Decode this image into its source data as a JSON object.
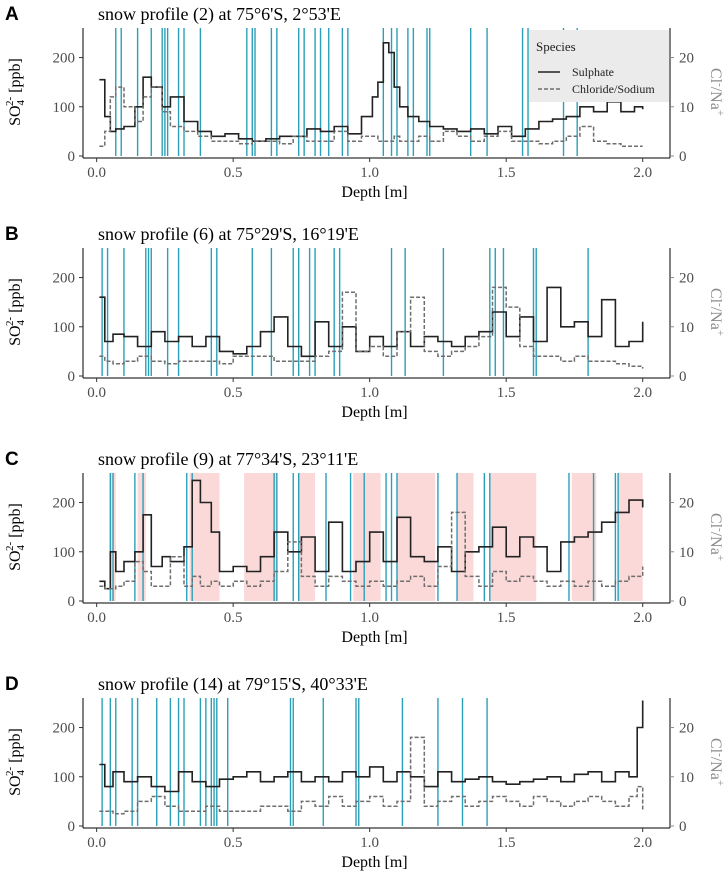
{
  "chart_data": [
    {
      "type": "line",
      "panel": "A",
      "title": "snow profile (2) at 75°6'S, 2°53'E",
      "xlabel": "Depth [m]",
      "ylabel": "SO4 2- [ppb]",
      "ylabel_right": "Cl-/Na+",
      "xlim": [
        -0.05,
        2.1
      ],
      "ylim": [
        0,
        260
      ],
      "ylim_right": [
        0,
        26
      ],
      "x_ticks": [
        "0.0",
        "0.5",
        "1.0",
        "1.5",
        "2.0"
      ],
      "y_ticks": [
        "0",
        "100",
        "200"
      ],
      "y_ticks_right": [
        "0",
        "10",
        "20"
      ],
      "legend": {
        "title": "Species",
        "entries": [
          "Sulphate",
          "Chloride/Sodium"
        ]
      },
      "vlines": [
        0.07,
        0.09,
        0.15,
        0.2,
        0.24,
        0.25,
        0.26,
        0.3,
        0.32,
        0.38,
        0.55,
        0.57,
        0.58,
        0.64,
        0.66,
        0.74,
        0.76,
        0.8,
        0.82,
        0.85,
        0.9,
        0.92,
        1.05,
        1.08,
        1.1,
        1.14,
        1.16,
        1.21,
        1.22,
        1.37,
        1.43,
        1.56,
        1.58,
        1.71,
        1.76
      ],
      "vline_color": "#2aa0b8",
      "bands": [],
      "series": [
        {
          "name": "Sulphate",
          "style": "solid",
          "x": [
            0.01,
            0.03,
            0.05,
            0.07,
            0.1,
            0.14,
            0.17,
            0.2,
            0.24,
            0.27,
            0.32,
            0.37,
            0.42,
            0.47,
            0.52,
            0.57,
            0.62,
            0.67,
            0.72,
            0.77,
            0.82,
            0.87,
            0.92,
            0.97,
            1.01,
            1.03,
            1.05,
            1.07,
            1.09,
            1.11,
            1.14,
            1.18,
            1.22,
            1.27,
            1.32,
            1.37,
            1.42,
            1.47,
            1.52,
            1.57,
            1.62,
            1.67,
            1.72,
            1.77,
            1.82,
            1.87,
            1.92,
            1.97,
            2.0
          ],
          "y": [
            155,
            80,
            50,
            55,
            60,
            100,
            160,
            140,
            100,
            120,
            70,
            50,
            40,
            45,
            35,
            30,
            35,
            40,
            40,
            55,
            50,
            60,
            45,
            80,
            120,
            150,
            230,
            210,
            140,
            100,
            80,
            70,
            60,
            55,
            50,
            55,
            45,
            60,
            40,
            55,
            70,
            75,
            80,
            100,
            90,
            110,
            90,
            100,
            95
          ]
        },
        {
          "name": "Chloride/Sodium",
          "style": "dashed",
          "x": [
            0.01,
            0.03,
            0.05,
            0.07,
            0.1,
            0.14,
            0.17,
            0.2,
            0.24,
            0.27,
            0.32,
            0.37,
            0.42,
            0.47,
            0.52,
            0.57,
            0.62,
            0.67,
            0.72,
            0.77,
            0.82,
            0.87,
            0.92,
            0.97,
            1.01,
            1.03,
            1.05,
            1.07,
            1.09,
            1.11,
            1.14,
            1.18,
            1.22,
            1.27,
            1.32,
            1.37,
            1.42,
            1.47,
            1.52,
            1.57,
            1.62,
            1.67,
            1.72,
            1.77,
            1.82,
            1.87,
            1.92,
            1.97,
            2.0
          ],
          "y": [
            2,
            5,
            12,
            14,
            10,
            7,
            12,
            14,
            9,
            6,
            5,
            4,
            3,
            3,
            2.5,
            3,
            3,
            2.5,
            4,
            3,
            3,
            5,
            3,
            4,
            4,
            3,
            3,
            3,
            4,
            3,
            3,
            4,
            3,
            5,
            4,
            3,
            4,
            5,
            3,
            3,
            2.5,
            3,
            4,
            6,
            3,
            2.5,
            2,
            2,
            2
          ]
        }
      ]
    },
    {
      "type": "line",
      "panel": "B",
      "title": "snow profile (6) at 75°29'S, 16°19'E",
      "xlabel": "Depth [m]",
      "ylabel": "SO4 2- [ppb]",
      "ylabel_right": "Cl-/Na+",
      "xlim": [
        -0.05,
        2.1
      ],
      "ylim": [
        0,
        260
      ],
      "ylim_right": [
        0,
        26
      ],
      "x_ticks": [
        "0.0",
        "0.5",
        "1.0",
        "1.5",
        "2.0"
      ],
      "y_ticks": [
        "0",
        "100",
        "200"
      ],
      "y_ticks_right": [
        "0",
        "10",
        "20"
      ],
      "vlines": [
        0.02,
        0.04,
        0.1,
        0.18,
        0.19,
        0.2,
        0.26,
        0.3,
        0.42,
        0.44,
        0.57,
        0.64,
        0.72,
        0.74,
        0.78,
        0.8,
        0.87,
        0.89,
        1.08,
        1.13,
        1.27,
        1.44,
        1.46,
        1.49,
        1.6,
        1.61,
        1.8
      ],
      "vline_color": "#2aa0b8",
      "bands": [],
      "series": [
        {
          "name": "Sulphate",
          "style": "solid",
          "x": [
            0.01,
            0.03,
            0.06,
            0.1,
            0.15,
            0.2,
            0.25,
            0.3,
            0.35,
            0.4,
            0.45,
            0.5,
            0.55,
            0.6,
            0.65,
            0.7,
            0.75,
            0.8,
            0.85,
            0.9,
            0.95,
            1.0,
            1.05,
            1.1,
            1.15,
            1.2,
            1.25,
            1.3,
            1.35,
            1.4,
            1.45,
            1.5,
            1.55,
            1.6,
            1.65,
            1.7,
            1.75,
            1.8,
            1.85,
            1.9,
            1.95,
            2.0
          ],
          "y": [
            160,
            70,
            85,
            80,
            60,
            90,
            70,
            80,
            60,
            80,
            50,
            45,
            60,
            90,
            120,
            60,
            40,
            110,
            60,
            100,
            50,
            80,
            60,
            90,
            60,
            80,
            70,
            60,
            80,
            90,
            130,
            80,
            120,
            70,
            180,
            100,
            110,
            80,
            155,
            60,
            70,
            110
          ]
        },
        {
          "name": "Chloride/Sodium",
          "style": "dashed",
          "x": [
            0.01,
            0.03,
            0.06,
            0.1,
            0.15,
            0.2,
            0.25,
            0.3,
            0.35,
            0.4,
            0.45,
            0.5,
            0.55,
            0.6,
            0.65,
            0.7,
            0.75,
            0.8,
            0.85,
            0.9,
            0.95,
            1.0,
            1.05,
            1.1,
            1.15,
            1.2,
            1.25,
            1.3,
            1.35,
            1.4,
            1.45,
            1.5,
            1.55,
            1.6,
            1.65,
            1.7,
            1.75,
            1.8,
            1.85,
            1.9,
            1.95,
            2.0
          ],
          "y": [
            4,
            3,
            2.5,
            3,
            4,
            3,
            2.5,
            3,
            3,
            3,
            2.5,
            4,
            4,
            4,
            3,
            3,
            3,
            4,
            5,
            17,
            5,
            6,
            4,
            9,
            16,
            5,
            4,
            5,
            6,
            8,
            18,
            14,
            6,
            4,
            4,
            3,
            4,
            3,
            3,
            2.5,
            2,
            1.5
          ]
        }
      ]
    },
    {
      "type": "line",
      "panel": "C",
      "title": "snow profile (9) at 77°34'S, 23°11'E",
      "xlabel": "Depth [m]",
      "ylabel": "SO4 2- [ppb]",
      "ylabel_right": "Cl-/Na+",
      "xlim": [
        -0.05,
        2.1
      ],
      "ylim": [
        0,
        260
      ],
      "ylim_right": [
        0,
        26
      ],
      "x_ticks": [
        "0.0",
        "0.5",
        "1.0",
        "1.5",
        "2.0"
      ],
      "y_ticks": [
        "0",
        "100",
        "200"
      ],
      "y_ticks_right": [
        "0",
        "10",
        "20"
      ],
      "vlines": [
        0.05,
        0.06,
        0.14,
        0.17,
        0.33,
        0.35,
        0.65,
        0.66,
        0.72,
        0.74,
        0.84,
        0.93,
        0.98,
        1.06,
        1.08,
        1.1,
        1.25,
        1.32,
        1.42,
        1.44,
        1.73,
        1.82,
        1.9,
        1.91
      ],
      "vline_color": "#2aa0b8",
      "bands": [
        0.05,
        0.07,
        0.15,
        0.18,
        0.34,
        0.45,
        0.54,
        0.66,
        0.74,
        0.8,
        0.94,
        1.04,
        1.1,
        1.24,
        1.32,
        1.38,
        1.44,
        1.61,
        1.74,
        1.83,
        1.91,
        2.0
      ],
      "band_color": "#fbd9d9",
      "series": [
        {
          "name": "Sulphate",
          "style": "solid",
          "x": [
            0.01,
            0.03,
            0.05,
            0.07,
            0.1,
            0.14,
            0.17,
            0.2,
            0.24,
            0.27,
            0.32,
            0.35,
            0.38,
            0.42,
            0.45,
            0.5,
            0.55,
            0.6,
            0.65,
            0.7,
            0.75,
            0.8,
            0.85,
            0.9,
            0.95,
            1.0,
            1.05,
            1.1,
            1.15,
            1.2,
            1.25,
            1.3,
            1.35,
            1.4,
            1.45,
            1.5,
            1.55,
            1.6,
            1.65,
            1.7,
            1.75,
            1.8,
            1.85,
            1.9,
            1.95,
            2.0
          ],
          "y": [
            40,
            25,
            100,
            60,
            80,
            100,
            175,
            70,
            90,
            80,
            110,
            245,
            200,
            140,
            60,
            70,
            60,
            90,
            140,
            100,
            130,
            60,
            160,
            60,
            80,
            140,
            80,
            170,
            90,
            80,
            110,
            60,
            100,
            110,
            150,
            90,
            130,
            110,
            60,
            120,
            130,
            140,
            160,
            180,
            205,
            190
          ]
        },
        {
          "name": "Chloride/Sodium",
          "style": "dashed",
          "x": [
            0.01,
            0.03,
            0.05,
            0.07,
            0.1,
            0.14,
            0.17,
            0.2,
            0.24,
            0.27,
            0.32,
            0.35,
            0.38,
            0.42,
            0.45,
            0.5,
            0.55,
            0.6,
            0.65,
            0.7,
            0.75,
            0.8,
            0.85,
            0.9,
            0.95,
            1.0,
            1.05,
            1.1,
            1.15,
            1.2,
            1.25,
            1.3,
            1.35,
            1.4,
            1.45,
            1.5,
            1.55,
            1.6,
            1.65,
            1.7,
            1.75,
            1.8,
            1.85,
            1.9,
            1.95,
            2.0
          ],
          "y": [
            3,
            2.5,
            2.5,
            3,
            4,
            8,
            6,
            3,
            3,
            9,
            3,
            5,
            3,
            4,
            3,
            4,
            3,
            4,
            6,
            12,
            5,
            3,
            5,
            4,
            3,
            4,
            3,
            4,
            5,
            3,
            7,
            18,
            5,
            3,
            6,
            4,
            5,
            4,
            3,
            4,
            3,
            4,
            3,
            4,
            5,
            7
          ]
        }
      ]
    },
    {
      "type": "line",
      "panel": "D",
      "title": "snow profile (14) at 79°15'S, 40°33'E",
      "xlabel": "Depth [m]",
      "ylabel": "SO4 2- [ppb]",
      "ylabel_right": "Cl-/Na+",
      "xlim": [
        -0.05,
        2.1
      ],
      "ylim": [
        0,
        260
      ],
      "ylim_right": [
        0,
        26
      ],
      "x_ticks": [
        "0.0",
        "0.5",
        "1.0",
        "1.5",
        "2.0"
      ],
      "y_ticks": [
        "0",
        "100",
        "200"
      ],
      "y_ticks_right": [
        "0",
        "10",
        "20"
      ],
      "vlines": [
        0.02,
        0.05,
        0.07,
        0.13,
        0.15,
        0.22,
        0.27,
        0.3,
        0.32,
        0.38,
        0.4,
        0.42,
        0.43,
        0.44,
        0.48,
        0.71,
        0.72,
        0.83,
        0.95,
        0.96,
        1.12,
        1.25,
        1.34,
        1.43
      ],
      "vline_color": "#2aa0b8",
      "bands": [],
      "series": [
        {
          "name": "Sulphate",
          "style": "solid",
          "x": [
            0.01,
            0.03,
            0.06,
            0.1,
            0.15,
            0.2,
            0.25,
            0.3,
            0.35,
            0.4,
            0.45,
            0.5,
            0.55,
            0.6,
            0.65,
            0.7,
            0.75,
            0.8,
            0.85,
            0.9,
            0.95,
            1.0,
            1.05,
            1.1,
            1.15,
            1.2,
            1.25,
            1.3,
            1.35,
            1.4,
            1.45,
            1.5,
            1.55,
            1.6,
            1.65,
            1.7,
            1.75,
            1.8,
            1.85,
            1.9,
            1.95,
            1.98,
            2.0
          ],
          "y": [
            125,
            80,
            110,
            90,
            100,
            80,
            70,
            110,
            90,
            80,
            95,
            100,
            110,
            90,
            100,
            110,
            90,
            100,
            90,
            110,
            100,
            120,
            90,
            110,
            100,
            80,
            110,
            90,
            95,
            100,
            90,
            85,
            90,
            95,
            100,
            90,
            105,
            110,
            90,
            110,
            100,
            200,
            255
          ]
        },
        {
          "name": "Chloride/Sodium",
          "style": "dashed",
          "x": [
            0.01,
            0.03,
            0.06,
            0.1,
            0.15,
            0.2,
            0.25,
            0.3,
            0.35,
            0.4,
            0.45,
            0.5,
            0.55,
            0.6,
            0.65,
            0.7,
            0.75,
            0.8,
            0.85,
            0.9,
            0.95,
            1.0,
            1.05,
            1.1,
            1.15,
            1.2,
            1.25,
            1.3,
            1.35,
            1.4,
            1.45,
            1.5,
            1.55,
            1.6,
            1.65,
            1.7,
            1.75,
            1.8,
            1.85,
            1.9,
            1.95,
            1.98,
            2.0
          ],
          "y": [
            3,
            3,
            2.5,
            3,
            5,
            6,
            4,
            3,
            3,
            4,
            3,
            3,
            3,
            4,
            4,
            3,
            5,
            4,
            6,
            4,
            5,
            6,
            4,
            5,
            18,
            4,
            5,
            6,
            4,
            5,
            6,
            5,
            4,
            6,
            5,
            4,
            5,
            6,
            5,
            4,
            6,
            8,
            3
          ]
        }
      ]
    }
  ]
}
